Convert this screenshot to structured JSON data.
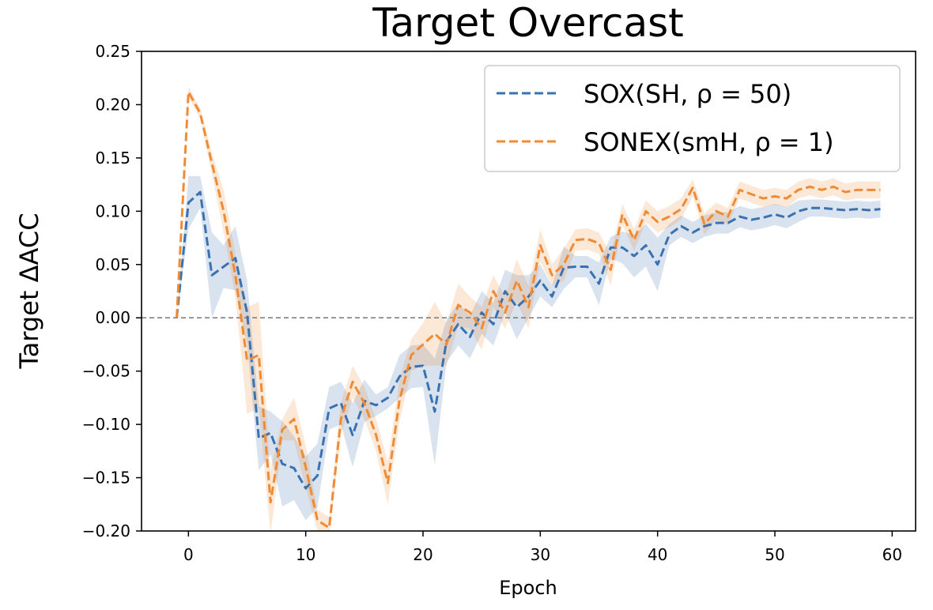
{
  "chart_data": {
    "type": "line",
    "title": "Target Overcast",
    "xlabel": "Epoch",
    "ylabel": "Target ΔACC",
    "xlim": [
      -4,
      62
    ],
    "ylim": [
      -0.2,
      0.25
    ],
    "x_ticks": [
      0,
      10,
      20,
      30,
      40,
      50,
      60
    ],
    "x_tick_labels": [
      "0",
      "10",
      "20",
      "30",
      "40",
      "50",
      "60"
    ],
    "y_ticks": [
      -0.2,
      -0.15,
      -0.1,
      -0.05,
      0.0,
      0.05,
      0.1,
      0.15,
      0.2,
      0.25
    ],
    "y_tick_labels": [
      "−0.20",
      "−0.15",
      "−0.10",
      "−0.05",
      "0.00",
      "0.05",
      "0.10",
      "0.15",
      "0.20",
      "0.25"
    ],
    "reference_line": {
      "y": 0.0,
      "style": "dashed",
      "color": "#808080"
    },
    "legend_position": "top-right",
    "x": [
      -1,
      0,
      1,
      2,
      3,
      4,
      5,
      6,
      7,
      8,
      9,
      10,
      11,
      12,
      13,
      14,
      15,
      16,
      17,
      18,
      19,
      20,
      21,
      22,
      23,
      24,
      25,
      26,
      27,
      28,
      29,
      30,
      31,
      32,
      33,
      34,
      35,
      36,
      37,
      38,
      39,
      40,
      41,
      42,
      43,
      44,
      45,
      46,
      47,
      48,
      49,
      50,
      51,
      52,
      53,
      54,
      55,
      56,
      57,
      58,
      59
    ],
    "series": [
      {
        "name": "SOX(SH, ρ =  50)",
        "color": "#3a72b0",
        "values": [
          0.0,
          0.108,
          0.118,
          0.04,
          0.048,
          0.056,
          0.005,
          -0.113,
          -0.108,
          -0.137,
          -0.141,
          -0.16,
          -0.148,
          -0.085,
          -0.08,
          -0.11,
          -0.078,
          -0.082,
          -0.075,
          -0.055,
          -0.046,
          -0.045,
          -0.088,
          -0.022,
          -0.006,
          -0.018,
          0.005,
          -0.006,
          0.025,
          0.01,
          0.02,
          0.035,
          0.02,
          0.047,
          0.048,
          0.048,
          0.032,
          0.066,
          0.066,
          0.058,
          0.068,
          0.05,
          0.078,
          0.086,
          0.08,
          0.086,
          0.089,
          0.089,
          0.095,
          0.092,
          0.094,
          0.097,
          0.094,
          0.1,
          0.103,
          0.103,
          0.102,
          0.101,
          0.102,
          0.101,
          0.102
        ],
        "band": [
          0.0,
          0.025,
          0.015,
          0.04,
          0.02,
          0.03,
          0.03,
          0.03,
          0.02,
          0.04,
          0.03,
          0.03,
          0.03,
          0.02,
          0.02,
          0.03,
          0.02,
          0.01,
          0.01,
          0.02,
          0.02,
          0.02,
          0.05,
          0.02,
          0.02,
          0.02,
          0.02,
          0.02,
          0.02,
          0.03,
          0.02,
          0.015,
          0.01,
          0.02,
          0.01,
          0.01,
          0.02,
          0.01,
          0.015,
          0.02,
          0.02,
          0.025,
          0.01,
          0.01,
          0.01,
          0.01,
          0.01,
          0.01,
          0.01,
          0.01,
          0.01,
          0.01,
          0.01,
          0.01,
          0.008,
          0.008,
          0.008,
          0.008,
          0.008,
          0.008,
          0.008
        ]
      },
      {
        "name": "SONEX(smH, ρ =  1)",
        "color": "#f08b35",
        "values": [
          0.0,
          0.212,
          0.192,
          0.145,
          0.1,
          0.04,
          -0.04,
          -0.035,
          -0.173,
          -0.105,
          -0.095,
          -0.14,
          -0.19,
          -0.197,
          -0.095,
          -0.06,
          -0.08,
          -0.11,
          -0.155,
          -0.077,
          -0.035,
          -0.025,
          -0.015,
          -0.025,
          0.012,
          0.005,
          -0.01,
          0.025,
          0.005,
          0.035,
          0.01,
          0.068,
          0.04,
          0.05,
          0.073,
          0.074,
          0.07,
          0.045,
          0.097,
          0.073,
          0.1,
          0.09,
          0.095,
          0.102,
          0.122,
          0.088,
          0.1,
          0.095,
          0.12,
          0.116,
          0.112,
          0.114,
          0.112,
          0.12,
          0.123,
          0.12,
          0.123,
          0.118,
          0.12,
          0.12,
          0.12
        ],
        "band": [
          0.0,
          0.005,
          0.005,
          0.01,
          0.02,
          0.02,
          0.05,
          0.05,
          0.03,
          0.01,
          0.02,
          0.02,
          0.01,
          0.01,
          0.015,
          0.015,
          0.015,
          0.015,
          0.02,
          0.02,
          0.015,
          0.02,
          0.03,
          0.02,
          0.02,
          0.015,
          0.02,
          0.015,
          0.015,
          0.02,
          0.02,
          0.015,
          0.01,
          0.015,
          0.01,
          0.01,
          0.01,
          0.015,
          0.01,
          0.01,
          0.01,
          0.01,
          0.01,
          0.01,
          0.008,
          0.01,
          0.008,
          0.008,
          0.008,
          0.008,
          0.008,
          0.008,
          0.008,
          0.008,
          0.008,
          0.008,
          0.008,
          0.008,
          0.008,
          0.008,
          0.008
        ]
      }
    ]
  }
}
